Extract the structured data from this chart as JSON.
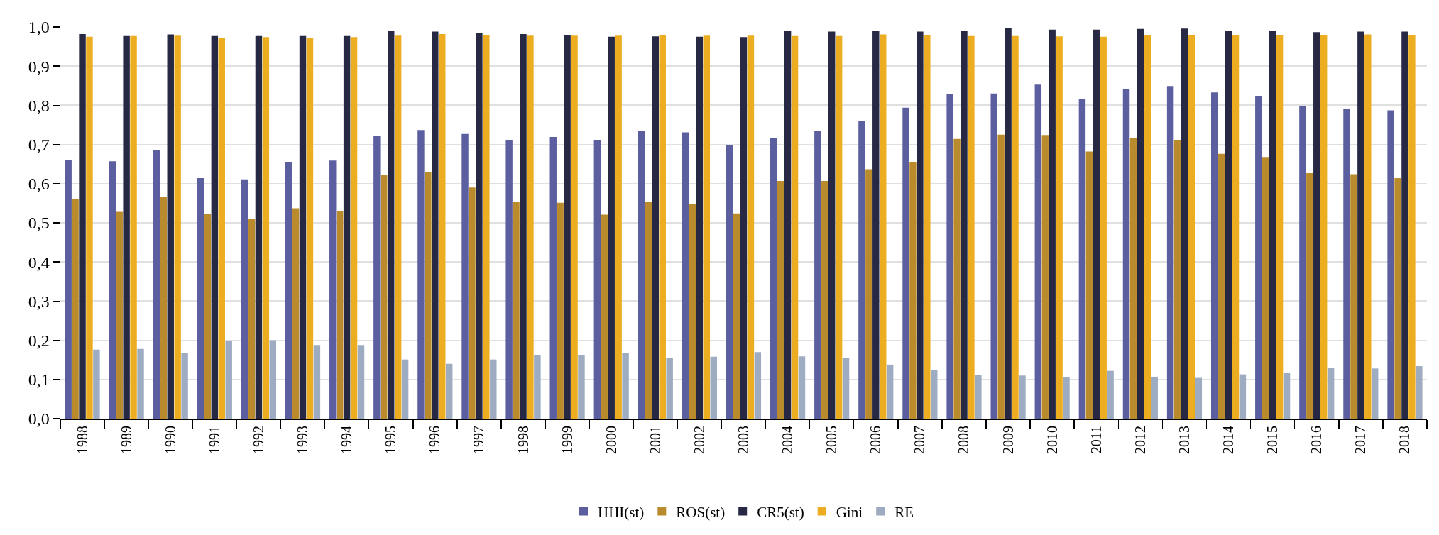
{
  "chart_data": {
    "type": "bar",
    "categories": [
      "1988",
      "1989",
      "1990",
      "1991",
      "1992",
      "1993",
      "1994",
      "1995",
      "1996",
      "1997",
      "1998",
      "1999",
      "2000",
      "2001",
      "2002",
      "2003",
      "2004",
      "2005",
      "2006",
      "2007",
      "2008",
      "2009",
      "2010",
      "2011",
      "2012",
      "2013",
      "2014",
      "2015",
      "2016",
      "2017",
      "2018"
    ],
    "series": [
      {
        "name": "HHI(st)",
        "color": "#5b5fa0",
        "values": [
          0.66,
          0.657,
          0.686,
          0.614,
          0.611,
          0.656,
          0.659,
          0.722,
          0.737,
          0.727,
          0.712,
          0.719,
          0.711,
          0.735,
          0.731,
          0.698,
          0.716,
          0.734,
          0.76,
          0.794,
          0.828,
          0.83,
          0.853,
          0.816,
          0.841,
          0.849,
          0.833,
          0.824,
          0.798,
          0.79,
          0.787
        ]
      },
      {
        "name": "ROS(st)",
        "color": "#b98b2c",
        "values": [
          0.56,
          0.528,
          0.567,
          0.522,
          0.509,
          0.537,
          0.529,
          0.623,
          0.629,
          0.59,
          0.553,
          0.551,
          0.521,
          0.553,
          0.548,
          0.524,
          0.607,
          0.607,
          0.637,
          0.654,
          0.714,
          0.725,
          0.724,
          0.682,
          0.717,
          0.711,
          0.676,
          0.668,
          0.627,
          0.624,
          0.614
        ]
      },
      {
        "name": "CR5(st)",
        "color": "#272944",
        "values": [
          0.982,
          0.977,
          0.981,
          0.977,
          0.977,
          0.977,
          0.977,
          0.99,
          0.988,
          0.985,
          0.982,
          0.98,
          0.975,
          0.976,
          0.975,
          0.974,
          0.991,
          0.988,
          0.991,
          0.988,
          0.991,
          0.997,
          0.993,
          0.993,
          0.995,
          0.996,
          0.991,
          0.99,
          0.987,
          0.988,
          0.988
        ]
      },
      {
        "name": "Gini",
        "color": "#ecae20",
        "values": [
          0.975,
          0.977,
          0.978,
          0.973,
          0.974,
          0.972,
          0.974,
          0.978,
          0.982,
          0.979,
          0.978,
          0.978,
          0.978,
          0.979,
          0.978,
          0.978,
          0.977,
          0.977,
          0.981,
          0.98,
          0.977,
          0.977,
          0.976,
          0.975,
          0.979,
          0.98,
          0.98,
          0.979,
          0.98,
          0.981,
          0.98
        ]
      },
      {
        "name": "RE",
        "color": "#9eacc2",
        "values": [
          0.176,
          0.178,
          0.167,
          0.199,
          0.2,
          0.188,
          0.188,
          0.151,
          0.14,
          0.151,
          0.162,
          0.162,
          0.168,
          0.155,
          0.158,
          0.17,
          0.159,
          0.154,
          0.138,
          0.125,
          0.112,
          0.11,
          0.105,
          0.122,
          0.107,
          0.104,
          0.113,
          0.116,
          0.13,
          0.128,
          0.134
        ]
      }
    ],
    "ylim": [
      0,
      1
    ],
    "yticks": [
      {
        "value": 0,
        "label": "0,0"
      },
      {
        "value": 0.1,
        "label": "0,1"
      },
      {
        "value": 0.2,
        "label": "0,2"
      },
      {
        "value": 0.3,
        "label": "0,3"
      },
      {
        "value": 0.4,
        "label": "0,4"
      },
      {
        "value": 0.5,
        "label": "0,5"
      },
      {
        "value": 0.6,
        "label": "0,6"
      },
      {
        "value": 0.7,
        "label": "0,7"
      },
      {
        "value": 0.8,
        "label": "0,8"
      },
      {
        "value": 0.9,
        "label": "0,9"
      },
      {
        "value": 1,
        "label": "1,0"
      }
    ],
    "grid": "y",
    "legend": "bottom"
  }
}
